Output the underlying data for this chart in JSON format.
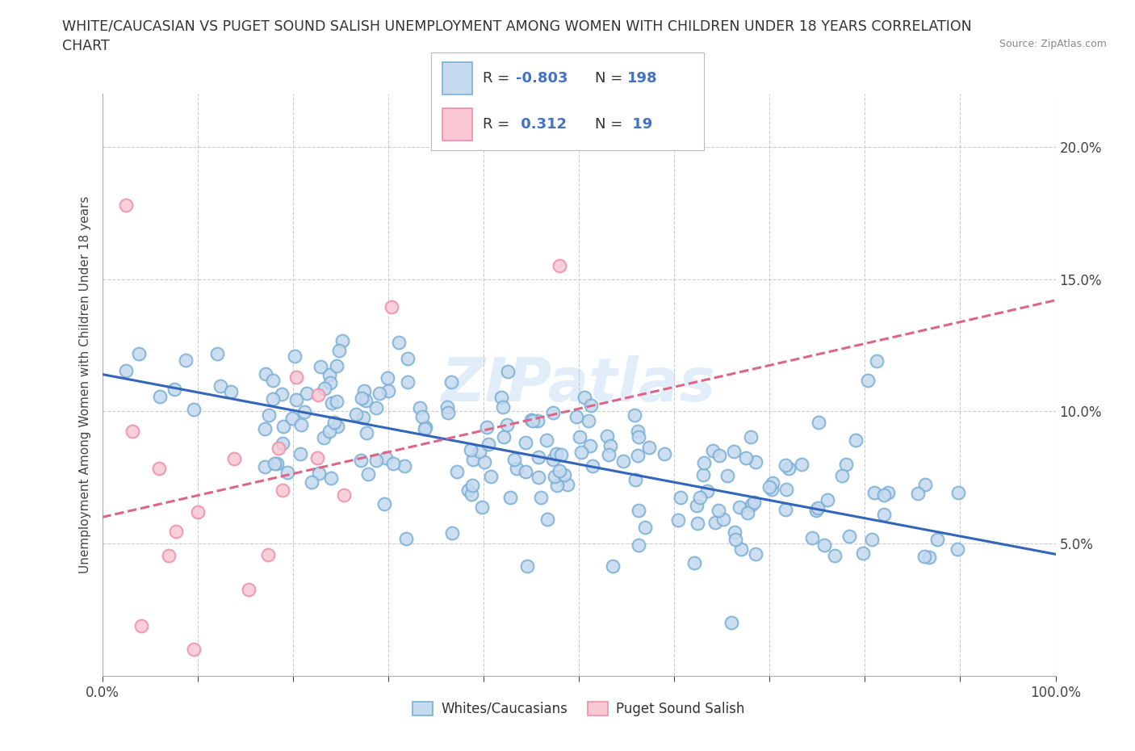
{
  "title_line1": "WHITE/CAUCASIAN VS PUGET SOUND SALISH UNEMPLOYMENT AMONG WOMEN WITH CHILDREN UNDER 18 YEARS CORRELATION",
  "title_line2": "CHART",
  "source": "Source: ZipAtlas.com",
  "ylabel": "Unemployment Among Women with Children Under 18 years",
  "xlim": [
    0,
    1.0
  ],
  "ylim": [
    0,
    0.22
  ],
  "xticks": [
    0,
    0.1,
    0.2,
    0.3,
    0.4,
    0.5,
    0.6,
    0.7,
    0.8,
    0.9,
    1.0
  ],
  "xticklabels": [
    "0.0%",
    "",
    "",
    "",
    "",
    "",
    "",
    "",
    "",
    "",
    "100.0%"
  ],
  "ytick_positions": [
    0.05,
    0.1,
    0.15,
    0.2
  ],
  "ytick_labels": [
    "5.0%",
    "10.0%",
    "15.0%",
    "20.0%"
  ],
  "blue_face_color": "#C5D9EF",
  "blue_edge_color": "#7AAFD4",
  "pink_face_color": "#F9C8D3",
  "pink_edge_color": "#EE8FAA",
  "blue_line_color": "#3366BB",
  "pink_line_color": "#DD6688",
  "watermark": "ZIPatlas",
  "blue_R": -0.803,
  "blue_N": 198,
  "pink_R": 0.312,
  "pink_N": 19,
  "grid_color": "#CCCCCC",
  "background_color": "#FFFFFF",
  "title_fontsize": 12.5,
  "axis_fontsize": 11,
  "tick_fontsize": 12,
  "blue_trendline_intercept": 0.114,
  "blue_trendline_slope": -0.068,
  "pink_trendline_intercept": 0.06,
  "pink_trendline_slope": 0.082
}
